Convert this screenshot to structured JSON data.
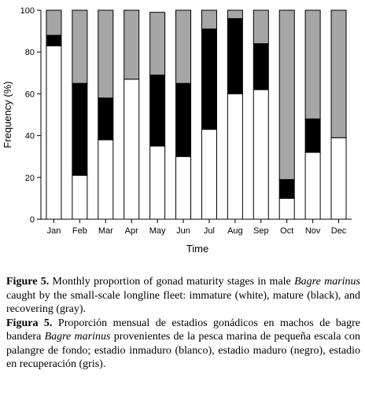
{
  "chart_data": {
    "type": "bar",
    "stacked": true,
    "xlabel": "Time",
    "ylabel": "Frequency (%)",
    "ylim": [
      0,
      100
    ],
    "yticks": [
      0,
      20,
      40,
      60,
      80,
      100
    ],
    "categories": [
      "Jan",
      "Feb",
      "Mar",
      "Apr",
      "May",
      "Jun",
      "Jul",
      "Aug",
      "Sep",
      "Oct",
      "Nov",
      "Dec"
    ],
    "series": [
      {
        "color": "#ffffff",
        "values": [
          83,
          21,
          38,
          67,
          35,
          30,
          43,
          60,
          62,
          10,
          32,
          39
        ]
      },
      {
        "color": "#000000",
        "values": [
          5,
          44,
          20,
          0,
          34,
          35,
          48,
          36,
          22,
          9,
          16,
          0
        ]
      },
      {
        "color": "#a6a6a6",
        "values": [
          12,
          35,
          42,
          33,
          30,
          35,
          9,
          4,
          16,
          81,
          52,
          61
        ]
      }
    ],
    "grid": false
  },
  "caption": {
    "en_label": "Figure 5.",
    "en_text_1": " Monthly proportion of gonad maturity stages in male ",
    "en_species": "Bagre marinus",
    "en_text_2": " caught by the small-scale longline fleet: immature (white), mature (black), and recovering (gray).",
    "es_label": "Figura 5.",
    "es_text_1": " Proporción mensual de estadios gonádicos en machos de bagre bandera ",
    "es_species": "Bagre marinus",
    "es_text_2": " provenientes de la pesca marina de pequeña escala con palangre de fondo; estadio inmaduro (blanco), estadio maduro (negro), estadio en recuperación (gris)."
  }
}
